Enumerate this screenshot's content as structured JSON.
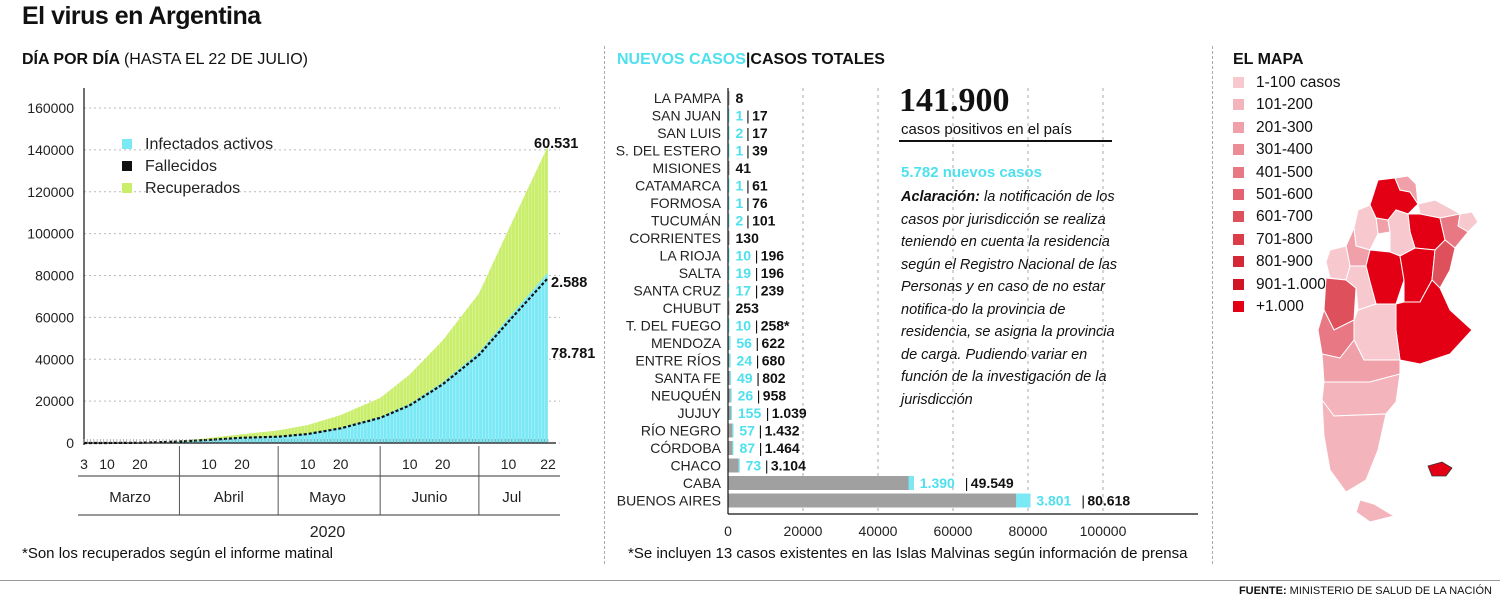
{
  "page_title": "El virus en Argentina",
  "left_title": {
    "bold": "DÍA POR DÍA",
    "light": "(HASTA EL 22 DE JULIO)"
  },
  "middle_title": {
    "cyan": "NUEVOS CASOS",
    "sep": "|",
    "black": "CASOS TOTALES"
  },
  "map_title": "EL MAPA",
  "left_footnote": "*Son los recuperados según el informe matinal",
  "middle_footnote": "*Se incluyen 13 casos existentes en las Islas Malvinas según información de prensa",
  "source": {
    "label": "FUENTE:",
    "text": "MINISTERIO DE SALUD DE LA NACIÓN"
  },
  "total": {
    "value": "141.900",
    "label": "casos positivos en el país"
  },
  "new_cases": "5.782 nuevos casos",
  "note": {
    "bold": "Aclaración:",
    "text": "la notificación de los casos por jurisdicción se realiza teniendo en cuenta la residencia según el Registro Nacional de las Personas y en caso de no estar notifica-do la provincia de residencia, se asigna la provincia de carga. Pudiendo variar en función de la investigación de la jurisdicción"
  },
  "map_legend": [
    {
      "label": "1-100 casos",
      "color": "#f7c9cf"
    },
    {
      "label": "101-200",
      "color": "#f4b4bc"
    },
    {
      "label": "201-300",
      "color": "#f0a0a9"
    },
    {
      "label": "301-400",
      "color": "#ec8c96"
    },
    {
      "label": "401-500",
      "color": "#e87883"
    },
    {
      "label": "501-600",
      "color": "#e36470"
    },
    {
      "label": "601-700",
      "color": "#df505d"
    },
    {
      "label": "701-800",
      "color": "#da3c4a"
    },
    {
      "label": "801-900",
      "color": "#d52837"
    },
    {
      "label": "901-1.000",
      "color": "#d11424"
    },
    {
      "label": "+1.000",
      "color": "#e40014"
    }
  ],
  "colors": {
    "active": "#7ae9f5",
    "deaths": "#111111",
    "recovered": "#c9ee6a",
    "bar_gray": "#a0a0a0",
    "cyan_text": "#4fe0ee",
    "map_accent": "#e40014"
  },
  "chart_data": [
    {
      "type": "area",
      "title": "DÍA POR DÍA",
      "subtitle": "(HASTA EL 22 DE JULIO)",
      "xlabel": "2020",
      "ylabel": "",
      "ylim": [
        0,
        160000
      ],
      "yticks": [
        "0",
        "20000",
        "40000",
        "60000",
        "80000",
        "100000",
        "120000",
        "140000",
        "160000"
      ],
      "x_day_ticks": [
        "3",
        "10",
        "20",
        "10",
        "20",
        "10",
        "20",
        "10",
        "20",
        "10",
        "22"
      ],
      "x_months": [
        "Marzo",
        "Abril",
        "Mayo",
        "Junio",
        "Jul"
      ],
      "legend": [
        "Infectados activos",
        "Fallecidos",
        "Recuperados"
      ],
      "legend_position": "top-left",
      "x": [
        "03-03",
        "03-10",
        "03-20",
        "04-01",
        "04-10",
        "04-20",
        "05-01",
        "05-10",
        "05-20",
        "06-01",
        "06-10",
        "06-20",
        "07-01",
        "07-10",
        "07-22"
      ],
      "series": [
        {
          "name": "Infectados activos",
          "values": [
            0,
            10,
            100,
            700,
            1500,
            2500,
            3000,
            4300,
            7000,
            12000,
            18000,
            28000,
            42000,
            58000,
            78781
          ]
        },
        {
          "name": "Fallecidos",
          "values": [
            0,
            0,
            3,
            20,
            80,
            150,
            220,
            300,
            380,
            530,
            720,
            1000,
            1400,
            1900,
            2588
          ]
        },
        {
          "name": "Recuperados",
          "values": [
            0,
            0,
            20,
            200,
            800,
            1500,
            2800,
            4000,
            6000,
            9000,
            14000,
            20000,
            28000,
            42000,
            60531
          ]
        }
      ],
      "annotations": [
        "60.531",
        "2.588",
        "78.781"
      ]
    },
    {
      "type": "bar",
      "title": "NUEVOS CASOS | CASOS TOTALES",
      "xlim": [
        0,
        115000
      ],
      "xticks": [
        "0",
        "20000",
        "40000",
        "60000",
        "80000",
        "100000"
      ],
      "categories": [
        "LA PAMPA",
        "SAN JUAN",
        "SAN LUIS",
        "S. DEL ESTERO",
        "MISIONES",
        "CATAMARCA",
        "FORMOSA",
        "TUCUMÁN",
        "CORRIENTES",
        "LA RIOJA",
        "SALTA",
        "SANTA CRUZ",
        "CHUBUT",
        "T. DEL FUEGO",
        "MENDOZA",
        "ENTRE RÍOS",
        "SANTA FE",
        "NEUQUÉN",
        "JUJUY",
        "RÍO NEGRO",
        "CÓRDOBA",
        "CHACO",
        "CABA",
        "BUENOS AIRES"
      ],
      "new_cases": [
        null,
        1,
        2,
        1,
        null,
        1,
        1,
        2,
        null,
        10,
        19,
        17,
        null,
        10,
        56,
        24,
        49,
        26,
        155,
        57,
        87,
        73,
        1390,
        3801
      ],
      "total_cases": [
        8,
        17,
        17,
        39,
        41,
        61,
        76,
        101,
        130,
        196,
        196,
        239,
        253,
        258,
        622,
        680,
        802,
        958,
        1039,
        1432,
        1464,
        3104,
        49549,
        80618
      ],
      "labels": [
        {
          "new": "",
          "total": "8"
        },
        {
          "new": "1",
          "total": "17"
        },
        {
          "new": "2",
          "total": "17"
        },
        {
          "new": "1",
          "total": "39"
        },
        {
          "new": "",
          "total": "41"
        },
        {
          "new": "1",
          "total": "61"
        },
        {
          "new": "1",
          "total": "76"
        },
        {
          "new": "2",
          "total": "101"
        },
        {
          "new": "",
          "total": "130"
        },
        {
          "new": "10",
          "total": "196"
        },
        {
          "new": "19",
          "total": "196"
        },
        {
          "new": "17",
          "total": "239"
        },
        {
          "new": "",
          "total": "253"
        },
        {
          "new": "10",
          "total": "258*"
        },
        {
          "new": "56",
          "total": "622"
        },
        {
          "new": "24",
          "total": "680"
        },
        {
          "new": "49",
          "total": "802"
        },
        {
          "new": "26",
          "total": "958"
        },
        {
          "new": "155",
          "total": "1.039"
        },
        {
          "new": "57",
          "total": "1.432"
        },
        {
          "new": "87",
          "total": "1.464"
        },
        {
          "new": "73",
          "total": "3.104"
        },
        {
          "new": "1.390",
          "total": "49.549"
        },
        {
          "new": "3.801",
          "total": "80.618"
        }
      ]
    }
  ]
}
